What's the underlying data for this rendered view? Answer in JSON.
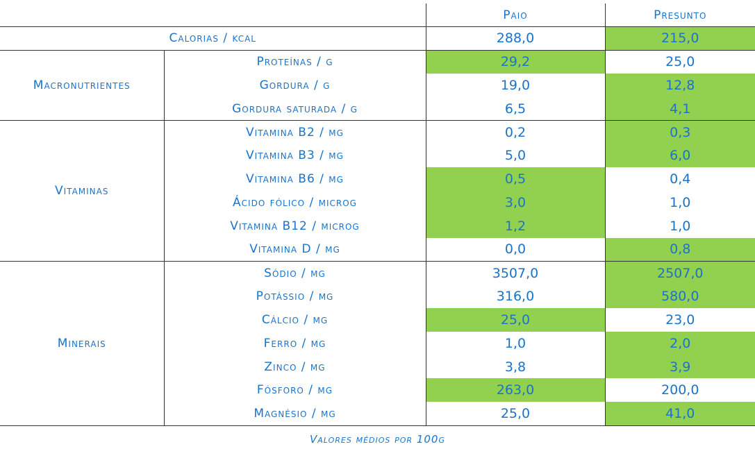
{
  "header": {
    "col1": "Paio",
    "col2": "Presunto"
  },
  "calorias": {
    "label": "Calorias / kcal",
    "paio": "288,0",
    "presunto": "215,0",
    "highlight": "presunto"
  },
  "groups": [
    {
      "name": "Macronutrientes",
      "rows": [
        {
          "label": "Proteínas / g",
          "paio": "29,2",
          "presunto": "25,0",
          "highlight": "paio"
        },
        {
          "label": "Gordura / g",
          "paio": "19,0",
          "presunto": "12,8",
          "highlight": "presunto"
        },
        {
          "label": "Gordura saturada / g",
          "paio": "6,5",
          "presunto": "4,1",
          "highlight": "presunto"
        }
      ]
    },
    {
      "name": "Vitaminas",
      "rows": [
        {
          "label": "Vitamina B2 / mg",
          "paio": "0,2",
          "presunto": "0,3",
          "highlight": "presunto"
        },
        {
          "label": "Vitamina B3 / mg",
          "paio": "5,0",
          "presunto": "6,0",
          "highlight": "presunto"
        },
        {
          "label": "Vitamina B6 / mg",
          "paio": "0,5",
          "presunto": "0,4",
          "highlight": "paio"
        },
        {
          "label": "Ácido fólico / microg",
          "paio": "3,0",
          "presunto": "1,0",
          "highlight": "paio"
        },
        {
          "label": "Vitamina B12 / microg",
          "paio": "1,2",
          "presunto": "1,0",
          "highlight": "paio"
        },
        {
          "label": "Vitamina D / mg",
          "paio": "0,0",
          "presunto": "0,8",
          "highlight": "presunto"
        }
      ]
    },
    {
      "name": "Minerais",
      "rows": [
        {
          "label": "Sódio / mg",
          "paio": "3507,0",
          "presunto": "2507,0",
          "highlight": "presunto"
        },
        {
          "label": "Potássio / mg",
          "paio": "316,0",
          "presunto": "580,0",
          "highlight": "presunto"
        },
        {
          "label": "Cálcio / mg",
          "paio": "25,0",
          "presunto": "23,0",
          "highlight": "paio"
        },
        {
          "label": "Ferro / mg",
          "paio": "1,0",
          "presunto": "2,0",
          "highlight": "presunto"
        },
        {
          "label": "Zinco / mg",
          "paio": "3,8",
          "presunto": "3,9",
          "highlight": "presunto"
        },
        {
          "label": "Fósforo / mg",
          "paio": "263,0",
          "presunto": "200,0",
          "highlight": "paio"
        },
        {
          "label": "Magnésio / mg",
          "paio": "25,0",
          "presunto": "41,0",
          "highlight": "presunto"
        }
      ]
    }
  ],
  "footer": "Valores médios por 100g",
  "colors": {
    "text": "#1a73c9",
    "highlight": "#92d050",
    "border": "#333333"
  }
}
